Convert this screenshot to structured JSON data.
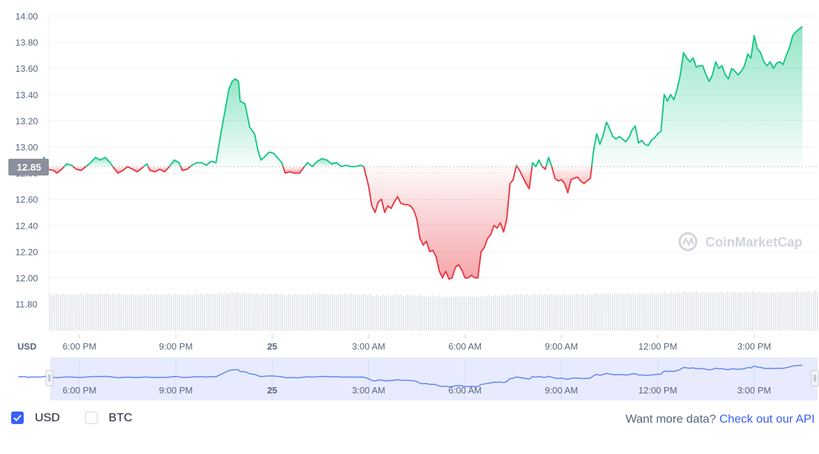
{
  "chart_data": {
    "type": "line",
    "title": "",
    "currency_label": "USD",
    "reference_price": 12.85,
    "reference_label": "12.85",
    "ylim": [
      11.7,
      14.0
    ],
    "y_ticks": [
      "14.00",
      "13.80",
      "13.60",
      "13.40",
      "13.20",
      "13.00",
      "12.80",
      "12.60",
      "12.40",
      "12.20",
      "12.00",
      "11.80"
    ],
    "x_ticks": [
      {
        "label": "6:00 PM",
        "hour": 1,
        "bold": false
      },
      {
        "label": "9:00 PM",
        "hour": 4,
        "bold": false
      },
      {
        "label": "25",
        "hour": 7,
        "bold": true
      },
      {
        "label": "3:00 AM",
        "hour": 10,
        "bold": false
      },
      {
        "label": "6:00 AM",
        "hour": 13,
        "bold": false
      },
      {
        "label": "9:00 AM",
        "hour": 16,
        "bold": false
      },
      {
        "label": "12:00 PM",
        "hour": 19,
        "bold": false
      },
      {
        "label": "3:00 PM",
        "hour": 22,
        "bold": false
      }
    ],
    "x_range_hours": [
      -0.9,
      23.5
    ],
    "series": [
      {
        "values": [
          [
            -0.9,
            12.87
          ],
          [
            -0.8,
            12.9
          ],
          [
            -0.7,
            12.88
          ],
          [
            -0.6,
            12.83
          ],
          [
            -0.5,
            12.87
          ],
          [
            -0.4,
            12.85
          ],
          [
            -0.3,
            12.87
          ],
          [
            -0.2,
            12.85
          ],
          [
            -0.1,
            12.92
          ],
          [
            0.0,
            12.83
          ],
          [
            0.2,
            12.82
          ],
          [
            0.3,
            12.8
          ],
          [
            0.45,
            12.83
          ],
          [
            0.6,
            12.87
          ],
          [
            0.75,
            12.86
          ],
          [
            0.9,
            12.83
          ],
          [
            1.05,
            12.82
          ],
          [
            1.2,
            12.85
          ],
          [
            1.35,
            12.88
          ],
          [
            1.5,
            12.92
          ],
          [
            1.65,
            12.9
          ],
          [
            1.8,
            12.92
          ],
          [
            1.95,
            12.88
          ],
          [
            2.1,
            12.83
          ],
          [
            2.2,
            12.8
          ],
          [
            2.35,
            12.82
          ],
          [
            2.5,
            12.85
          ],
          [
            2.65,
            12.83
          ],
          [
            2.8,
            12.81
          ],
          [
            2.95,
            12.84
          ],
          [
            3.1,
            12.87
          ],
          [
            3.2,
            12.82
          ],
          [
            3.35,
            12.81
          ],
          [
            3.5,
            12.83
          ],
          [
            3.65,
            12.81
          ],
          [
            3.8,
            12.85
          ],
          [
            3.95,
            12.9
          ],
          [
            4.1,
            12.88
          ],
          [
            4.2,
            12.82
          ],
          [
            4.35,
            12.83
          ],
          [
            4.5,
            12.86
          ],
          [
            4.65,
            12.88
          ],
          [
            4.8,
            12.88
          ],
          [
            4.95,
            12.86
          ],
          [
            5.1,
            12.89
          ],
          [
            5.25,
            12.88
          ],
          [
            5.4,
            13.1
          ],
          [
            5.55,
            13.3
          ],
          [
            5.65,
            13.44
          ],
          [
            5.75,
            13.5
          ],
          [
            5.85,
            13.52
          ],
          [
            5.95,
            13.5
          ],
          [
            6.0,
            13.35
          ],
          [
            6.15,
            13.33
          ],
          [
            6.3,
            13.15
          ],
          [
            6.45,
            13.1
          ],
          [
            6.55,
            12.98
          ],
          [
            6.65,
            12.9
          ],
          [
            6.75,
            12.92
          ],
          [
            6.9,
            12.96
          ],
          [
            7.05,
            12.95
          ],
          [
            7.15,
            12.92
          ],
          [
            7.3,
            12.88
          ],
          [
            7.4,
            12.8
          ],
          [
            7.55,
            12.81
          ],
          [
            7.7,
            12.8
          ],
          [
            7.85,
            12.8
          ],
          [
            8.0,
            12.85
          ],
          [
            8.1,
            12.88
          ],
          [
            8.25,
            12.85
          ],
          [
            8.4,
            12.89
          ],
          [
            8.55,
            12.91
          ],
          [
            8.7,
            12.9
          ],
          [
            8.85,
            12.87
          ],
          [
            9.0,
            12.88
          ],
          [
            9.15,
            12.85
          ],
          [
            9.3,
            12.86
          ],
          [
            9.45,
            12.85
          ],
          [
            9.6,
            12.85
          ],
          [
            9.75,
            12.86
          ],
          [
            9.85,
            12.85
          ],
          [
            10.0,
            12.7
          ],
          [
            10.1,
            12.55
          ],
          [
            10.2,
            12.5
          ],
          [
            10.3,
            12.58
          ],
          [
            10.4,
            12.6
          ],
          [
            10.5,
            12.5
          ],
          [
            10.6,
            12.55
          ],
          [
            10.7,
            12.53
          ],
          [
            10.8,
            12.58
          ],
          [
            10.9,
            12.62
          ],
          [
            11.0,
            12.57
          ],
          [
            11.1,
            12.56
          ],
          [
            11.2,
            12.56
          ],
          [
            11.3,
            12.55
          ],
          [
            11.4,
            12.52
          ],
          [
            11.5,
            12.45
          ],
          [
            11.6,
            12.3
          ],
          [
            11.7,
            12.25
          ],
          [
            11.8,
            12.28
          ],
          [
            11.9,
            12.2
          ],
          [
            12.0,
            12.21
          ],
          [
            12.1,
            12.16
          ],
          [
            12.2,
            12.05
          ],
          [
            12.3,
            12.0
          ],
          [
            12.4,
            12.05
          ],
          [
            12.5,
            11.99
          ],
          [
            12.6,
            12.0
          ],
          [
            12.7,
            12.08
          ],
          [
            12.8,
            12.1
          ],
          [
            12.9,
            12.06
          ],
          [
            13.0,
            12.0
          ],
          [
            13.1,
            12.0
          ],
          [
            13.2,
            12.02
          ],
          [
            13.3,
            12.0
          ],
          [
            13.4,
            12.0
          ],
          [
            13.5,
            12.2
          ],
          [
            13.6,
            12.23
          ],
          [
            13.7,
            12.3
          ],
          [
            13.8,
            12.33
          ],
          [
            13.9,
            12.4
          ],
          [
            14.0,
            12.38
          ],
          [
            14.1,
            12.42
          ],
          [
            14.2,
            12.35
          ],
          [
            14.3,
            12.45
          ],
          [
            14.4,
            12.72
          ],
          [
            14.5,
            12.75
          ],
          [
            14.6,
            12.86
          ],
          [
            14.7,
            12.82
          ],
          [
            14.8,
            12.77
          ],
          [
            14.9,
            12.72
          ],
          [
            15.0,
            12.68
          ],
          [
            15.1,
            12.88
          ],
          [
            15.2,
            12.85
          ],
          [
            15.3,
            12.9
          ],
          [
            15.4,
            12.85
          ],
          [
            15.5,
            12.83
          ],
          [
            15.6,
            12.92
          ],
          [
            15.7,
            12.85
          ],
          [
            15.8,
            12.76
          ],
          [
            15.9,
            12.74
          ],
          [
            16.0,
            12.75
          ],
          [
            16.1,
            12.72
          ],
          [
            16.2,
            12.65
          ],
          [
            16.3,
            12.75
          ],
          [
            16.4,
            12.76
          ],
          [
            16.5,
            12.77
          ],
          [
            16.6,
            12.74
          ],
          [
            16.7,
            12.72
          ],
          [
            16.8,
            12.74
          ],
          [
            16.9,
            12.76
          ],
          [
            17.0,
            12.97
          ],
          [
            17.1,
            13.1
          ],
          [
            17.2,
            13.02
          ],
          [
            17.3,
            13.09
          ],
          [
            17.4,
            13.19
          ],
          [
            17.5,
            13.14
          ],
          [
            17.6,
            13.08
          ],
          [
            17.7,
            13.06
          ],
          [
            17.8,
            13.08
          ],
          [
            17.9,
            13.06
          ],
          [
            18.0,
            13.04
          ],
          [
            18.1,
            13.07
          ],
          [
            18.2,
            13.13
          ],
          [
            18.3,
            13.16
          ],
          [
            18.4,
            13.03
          ],
          [
            18.5,
            13.05
          ],
          [
            18.6,
            13.02
          ],
          [
            18.7,
            13.01
          ],
          [
            18.8,
            13.05
          ],
          [
            18.9,
            13.07
          ],
          [
            19.0,
            13.1
          ],
          [
            19.1,
            13.12
          ],
          [
            19.2,
            13.4
          ],
          [
            19.3,
            13.35
          ],
          [
            19.4,
            13.4
          ],
          [
            19.5,
            13.36
          ],
          [
            19.6,
            13.44
          ],
          [
            19.7,
            13.55
          ],
          [
            19.8,
            13.72
          ],
          [
            19.9,
            13.68
          ],
          [
            20.0,
            13.65
          ],
          [
            20.1,
            13.68
          ],
          [
            20.2,
            13.61
          ],
          [
            20.3,
            13.62
          ],
          [
            20.4,
            13.62
          ],
          [
            20.5,
            13.55
          ],
          [
            20.6,
            13.5
          ],
          [
            20.7,
            13.55
          ],
          [
            20.8,
            13.65
          ],
          [
            20.9,
            13.6
          ],
          [
            21.0,
            13.62
          ],
          [
            21.1,
            13.55
          ],
          [
            21.2,
            13.52
          ],
          [
            21.3,
            13.6
          ],
          [
            21.4,
            13.58
          ],
          [
            21.5,
            13.55
          ],
          [
            21.6,
            13.58
          ],
          [
            21.7,
            13.62
          ],
          [
            21.8,
            13.71
          ],
          [
            21.9,
            13.68
          ],
          [
            22.0,
            13.85
          ],
          [
            22.1,
            13.75
          ],
          [
            22.2,
            13.72
          ],
          [
            22.3,
            13.65
          ],
          [
            22.4,
            13.62
          ],
          [
            22.5,
            13.65
          ],
          [
            22.6,
            13.6
          ],
          [
            22.7,
            13.64
          ],
          [
            22.8,
            13.65
          ],
          [
            22.9,
            13.63
          ],
          [
            23.0,
            13.7
          ],
          [
            23.1,
            13.76
          ],
          [
            23.2,
            13.85
          ],
          [
            23.3,
            13.88
          ],
          [
            23.4,
            13.9
          ],
          [
            23.5,
            13.92
          ]
        ]
      }
    ],
    "volume": "bars",
    "colors": {
      "up": "#16c784",
      "down": "#ea3943",
      "navigator": "#6888f2",
      "grid": "#eff2f5"
    }
  },
  "watermark": "CoinMarketCap",
  "legend": [
    {
      "label": "USD",
      "checked": true
    },
    {
      "label": "BTC",
      "checked": false
    }
  ],
  "footer": {
    "text": "Want more data?",
    "link": "Check out our API"
  }
}
